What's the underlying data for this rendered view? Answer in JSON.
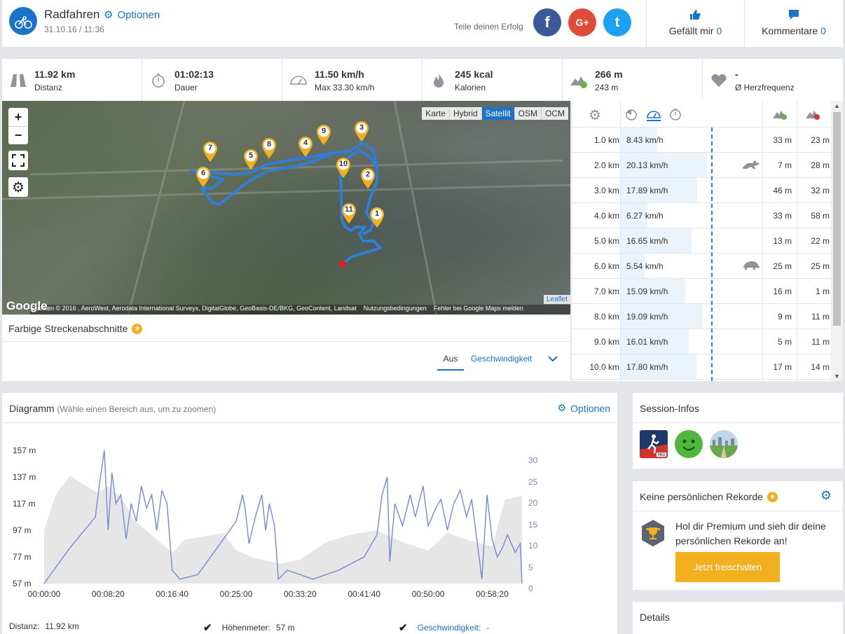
{
  "header": {
    "title": "Radfahren",
    "options_label": "Optionen",
    "date": "31.10.16 / 11:36",
    "share_text": "Teile deinen Erfolg",
    "facebook_label": "f",
    "google_label": "G+",
    "twitter_label": "t",
    "like_label": "Gefällt mir",
    "like_count": "0",
    "comments_label": "Kommentare",
    "comments_count": "0"
  },
  "stats": [
    {
      "value": "11.92 km",
      "label": "Distanz",
      "icon": "road-icon"
    },
    {
      "value": "01:02:13",
      "label": "Dauer",
      "icon": "stopwatch-icon"
    },
    {
      "value": "11.50 km/h",
      "label": "Max 33.30 km/h",
      "icon": "speedometer-icon"
    },
    {
      "value": "245 kcal",
      "label": "Kalorien",
      "icon": "flame-icon"
    },
    {
      "value": "266 m",
      "label": "243 m",
      "icon": "elevation-icon"
    },
    {
      "value": "-",
      "label": "Ø Herzfrequenz",
      "icon": "heart-icon"
    }
  ],
  "map": {
    "layers": [
      "Karte",
      "Hybrid",
      "Satellit",
      "OSM",
      "OCM"
    ],
    "active_layer": "Satellit",
    "zoom_in": "+",
    "zoom_out": "−",
    "google": "Google",
    "attribution": "Grafiken © 2016 , AeroWest, Aerodata International Surveys, DigitalGlobe, GeoBasis-DE/BKG, GeoContent, Landsat",
    "terms": "Nutzungsbedingungen",
    "report": "Fehler bei Google Maps melden",
    "leaflet": "Leaflet",
    "markers": [
      "1",
      "2",
      "3",
      "4",
      "5",
      "6",
      "7",
      "8",
      "9",
      "10",
      "11"
    ]
  },
  "segments": {
    "title": "Farbige Streckenabschnitte",
    "tab_off": "Aus",
    "tab_speed": "Geschwindigkeit"
  },
  "splits": {
    "rows": [
      {
        "km": "1.0 km",
        "speed": "8.43 km/h",
        "speed_value": 8.43,
        "up": "33 m",
        "down": "23 m",
        "badge": ""
      },
      {
        "km": "2.0 km",
        "speed": "20.13 km/h",
        "speed_value": 20.13,
        "up": "7 m",
        "down": "28 m",
        "badge": "hare-icon"
      },
      {
        "km": "3.0 km",
        "speed": "17.89 km/h",
        "speed_value": 17.89,
        "up": "46 m",
        "down": "32 m",
        "badge": ""
      },
      {
        "km": "4.0 km",
        "speed": "6.27 km/h",
        "speed_value": 6.27,
        "up": "33 m",
        "down": "58 m",
        "badge": ""
      },
      {
        "km": "5.0 km",
        "speed": "16.65 km/h",
        "speed_value": 16.65,
        "up": "13 m",
        "down": "22 m",
        "badge": ""
      },
      {
        "km": "6.0 km",
        "speed": "5.54 km/h",
        "speed_value": 5.54,
        "up": "25 m",
        "down": "25 m",
        "badge": "turtle-icon"
      },
      {
        "km": "7.0 km",
        "speed": "15.09 km/h",
        "speed_value": 15.09,
        "up": "16 m",
        "down": "1 m",
        "badge": ""
      },
      {
        "km": "8.0 km",
        "speed": "19.09 km/h",
        "speed_value": 19.09,
        "up": "9 m",
        "down": "11 m",
        "badge": ""
      },
      {
        "km": "9.0 km",
        "speed": "16.01 km/h",
        "speed_value": 16.01,
        "up": "5 m",
        "down": "11 m",
        "badge": ""
      },
      {
        "km": "10.0 km",
        "speed": "17.80 km/h",
        "speed_value": 17.8,
        "up": "17 m",
        "down": "14 m",
        "badge": ""
      }
    ]
  },
  "diagram": {
    "title": "Diagramm",
    "subtitle": "(Wähle einen Bereich aus, um zu zoomen)",
    "options_label": "Optionen",
    "distance_label": "Distanz:",
    "distance_value": "11.92 km",
    "elevation_label": "Höhenmeter:",
    "elevation_value": "57 m",
    "speed_label": "Geschwindigkeit:",
    "speed_value": "-"
  },
  "chart_data": {
    "type": "line",
    "y_left": {
      "ticks": [
        "157 m",
        "137 m",
        "117 m",
        "97 m",
        "77 m",
        "57 m"
      ],
      "range": [
        57,
        157
      ]
    },
    "y_right": {
      "ticks": [
        "30",
        "25",
        "20",
        "15",
        "10",
        "5",
        "0"
      ],
      "range": [
        0,
        30
      ]
    },
    "x_ticks": [
      "00:00:00",
      "00:08:20",
      "00:16:40",
      "00:25:00",
      "00:33:20",
      "00:41:40",
      "00:50:00",
      "00:58:20"
    ],
    "series": [
      {
        "kind": "area",
        "axis": "left",
        "color": "#e6e6e6",
        "points": [
          [
            0,
            97
          ],
          [
            60,
            115
          ],
          [
            100,
            125
          ],
          [
            200,
            138
          ],
          [
            420,
            125
          ],
          [
            500,
            130
          ],
          [
            600,
            122
          ],
          [
            700,
            105
          ],
          [
            1000,
            80
          ],
          [
            1100,
            90
          ],
          [
            1400,
            95
          ],
          [
            1500,
            82
          ],
          [
            1650,
            76
          ],
          [
            1850,
            72
          ],
          [
            2000,
            75
          ],
          [
            2200,
            88
          ],
          [
            2400,
            94
          ],
          [
            2600,
            97
          ],
          [
            2800,
            88
          ],
          [
            3000,
            82
          ],
          [
            3150,
            95
          ],
          [
            3300,
            90
          ],
          [
            3500,
            85
          ],
          [
            3600,
            120
          ],
          [
            3733,
            123
          ]
        ]
      },
      {
        "kind": "line",
        "axis": "right",
        "color": "#7589d4",
        "points": [
          [
            0,
            0
          ],
          [
            200,
            8
          ],
          [
            400,
            15
          ],
          [
            430,
            22
          ],
          [
            470,
            30
          ],
          [
            500,
            12
          ],
          [
            530,
            25
          ],
          [
            560,
            18
          ],
          [
            600,
            20
          ],
          [
            640,
            10
          ],
          [
            680,
            18
          ],
          [
            720,
            14
          ],
          [
            760,
            22
          ],
          [
            800,
            17
          ],
          [
            840,
            20
          ],
          [
            880,
            12
          ],
          [
            920,
            21
          ],
          [
            960,
            18
          ],
          [
            1000,
            3
          ],
          [
            1060,
            1
          ],
          [
            1200,
            2
          ],
          [
            1400,
            10
          ],
          [
            1500,
            14
          ],
          [
            1550,
            20
          ],
          [
            1570,
            17
          ],
          [
            1600,
            9
          ],
          [
            1650,
            15
          ],
          [
            1700,
            20
          ],
          [
            1730,
            12
          ],
          [
            1760,
            18
          ],
          [
            1800,
            13
          ],
          [
            1830,
            1
          ],
          [
            1900,
            3
          ],
          [
            2100,
            1
          ],
          [
            2300,
            3
          ],
          [
            2500,
            6
          ],
          [
            2600,
            11
          ],
          [
            2640,
            20
          ],
          [
            2680,
            24
          ],
          [
            2700,
            5
          ],
          [
            2740,
            18
          ],
          [
            2800,
            13
          ],
          [
            2860,
            20
          ],
          [
            2900,
            15
          ],
          [
            2960,
            22
          ],
          [
            3000,
            13
          ],
          [
            3060,
            17
          ],
          [
            3100,
            19
          ],
          [
            3150,
            12
          ],
          [
            3200,
            18
          ],
          [
            3250,
            21
          ],
          [
            3300,
            15
          ],
          [
            3340,
            19
          ],
          [
            3380,
            10
          ],
          [
            3420,
            1
          ],
          [
            3460,
            20
          ],
          [
            3500,
            10
          ],
          [
            3540,
            6
          ],
          [
            3580,
            8
          ],
          [
            3620,
            11
          ],
          [
            3680,
            7
          ],
          [
            3720,
            9
          ],
          [
            3733,
            0
          ]
        ]
      }
    ]
  },
  "session": {
    "title": "Session-Infos"
  },
  "records": {
    "title": "Keine persönlichen Rekorde",
    "message": "Hol dir Premium und sieh dir deine persönlichen Rekorde an!",
    "unlock_label": "Jetzt freischalten"
  },
  "details": {
    "title": "Details"
  },
  "colors": {
    "accent": "#1a72c9",
    "premium": "#f2b01e",
    "route": "#2f7ed8",
    "facebook": "#3b5998",
    "google": "#dd4b39",
    "twitter": "#1da1f2"
  }
}
